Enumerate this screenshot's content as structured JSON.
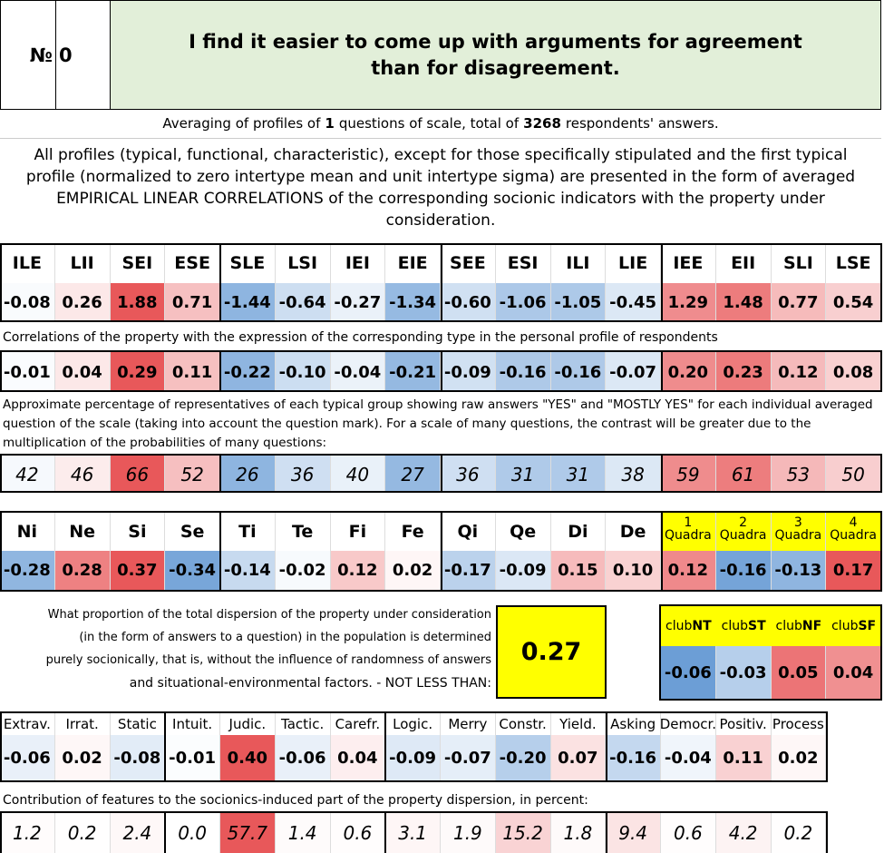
{
  "header": {
    "number_label": "№",
    "number": "0",
    "title": "I find it easier to come up with arguments for agreement than for disagreement."
  },
  "summary": {
    "prefix": "Averaging of profiles of",
    "questions": "1",
    "middle": "questions of scale, total of",
    "respondents": "3268",
    "suffix": "respondents' answers."
  },
  "note": "All profiles (typical, functional, characteristic), except for those specifically stipulated and the first typical profile (normalized to zero intertype mean and unit intertype sigma) are presented in the form of averaged EMPIRICAL LINEAR CORRELATIONS of the corresponding socionic indicators with the property under consideration.",
  "types": {
    "headers": [
      "ILE",
      "LII",
      "SEI",
      "ESE",
      "SLE",
      "LSI",
      "IEI",
      "EIE",
      "SEE",
      "ESI",
      "ILI",
      "LIE",
      "IEE",
      "EII",
      "SLI",
      "LSE"
    ],
    "values": [
      "-0.08",
      "0.26",
      "1.88",
      "0.71",
      "-1.44",
      "-0.64",
      "-0.27",
      "-1.34",
      "-0.60",
      "-1.06",
      "-1.05",
      "-0.45",
      "1.29",
      "1.48",
      "0.77",
      "0.54"
    ]
  },
  "correlations": {
    "caption": "Correlations of the property with the expression of the corresponding type in the personal profile of respondents",
    "values": [
      "-0.01",
      "0.04",
      "0.29",
      "0.11",
      "-0.22",
      "-0.10",
      "-0.04",
      "-0.21",
      "-0.09",
      "-0.16",
      "-0.16",
      "-0.07",
      "0.20",
      "0.23",
      "0.12",
      "0.08"
    ]
  },
  "percentages": {
    "caption": "Approximate percentage of representatives of each typical group showing raw answers \"YES\" and \"MOSTLY YES\" for each individual averaged question of the scale (taking into account the question mark). For a scale of many questions, the contrast will be greater due to the multiplication of the probabilities of many questions:",
    "values": [
      "42",
      "46",
      "66",
      "52",
      "26",
      "36",
      "40",
      "27",
      "36",
      "31",
      "31",
      "38",
      "59",
      "61",
      "53",
      "50"
    ]
  },
  "functions": {
    "headers": [
      "Ni",
      "Ne",
      "Si",
      "Se",
      "Ti",
      "Te",
      "Fi",
      "Fe",
      "Qi",
      "Qe",
      "Di",
      "De"
    ],
    "values": [
      "-0.28",
      "0.28",
      "0.37",
      "-0.34",
      "-0.14",
      "-0.02",
      "0.12",
      "0.02",
      "-0.17",
      "-0.09",
      "0.15",
      "0.10"
    ]
  },
  "quadras": {
    "headers": [
      {
        "number": "1",
        "label": "Quadra"
      },
      {
        "number": "2",
        "label": "Quadra"
      },
      {
        "number": "3",
        "label": "Quadra"
      },
      {
        "number": "4",
        "label": "Quadra"
      }
    ],
    "values": [
      "0.12",
      "-0.16",
      "-0.13",
      "0.17"
    ]
  },
  "dispersion": {
    "lines": [
      "What proportion of the total dispersion of the property under consideration",
      "(in the form of answers to a question) in the population is determined",
      "purely socionically, that is, without the influence of randomness of answers",
      "and situational-environmental factors. - NOT LESS THAN:"
    ],
    "value": "0.27"
  },
  "clubs": {
    "headers": [
      {
        "prefix": "club",
        "name": "NT"
      },
      {
        "prefix": "club",
        "name": "ST"
      },
      {
        "prefix": "club",
        "name": "NF"
      },
      {
        "prefix": "club",
        "name": "SF"
      }
    ],
    "values": [
      "-0.06",
      "-0.03",
      "0.05",
      "0.04"
    ]
  },
  "features": {
    "headers": [
      "Extrav.",
      "Irrat.",
      "Static",
      "Intuit.",
      "Judic.",
      "Tactic.",
      "Carefr.",
      "Logic.",
      "Merry",
      "Constr.",
      "Yield.",
      "Asking",
      "Democr.",
      "Positiv.",
      "Process"
    ],
    "values": [
      "-0.06",
      "0.02",
      "-0.08",
      "-0.01",
      "0.40",
      "-0.06",
      "0.04",
      "-0.09",
      "-0.07",
      "-0.20",
      "0.07",
      "-0.16",
      "-0.04",
      "0.11",
      "0.02"
    ]
  },
  "contributions": {
    "caption": "Contribution of features to the socionics-induced part of the property dispersion, in percent:",
    "values": [
      "1.2",
      "0.2",
      "2.4",
      "0.0",
      "57.7",
      "1.4",
      "0.6",
      "3.1",
      "1.9",
      "15.2",
      "1.8",
      "9.4",
      "0.6",
      "4.2",
      "0.2"
    ]
  }
}
